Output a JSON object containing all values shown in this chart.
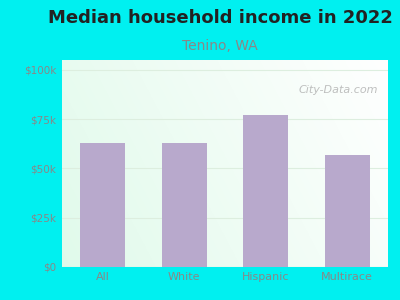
{
  "title": "Median household income in 2022",
  "subtitle": "Tenino, WA",
  "categories": [
    "All",
    "White",
    "Hispanic",
    "Multirace"
  ],
  "values": [
    63000,
    63000,
    77000,
    57000
  ],
  "bar_color": "#b8a9cc",
  "background_outer": "#00f0f0",
  "yticks": [
    0,
    25000,
    50000,
    75000,
    100000
  ],
  "ytick_labels": [
    "$0",
    "$25k",
    "$50k",
    "$75k",
    "$100k"
  ],
  "ylim": [
    0,
    105000
  ],
  "title_fontsize": 13,
  "subtitle_fontsize": 10,
  "subtitle_color": "#888888",
  "tick_color": "#888888",
  "title_color": "#222222",
  "watermark": "City-Data.com",
  "watermark_color": "#aaaaaa",
  "plot_bg_colors": [
    "#cde8d8",
    "#e8f5ec",
    "#f5faf7",
    "#f0f8f4"
  ],
  "grid_color": "#ddeedf"
}
